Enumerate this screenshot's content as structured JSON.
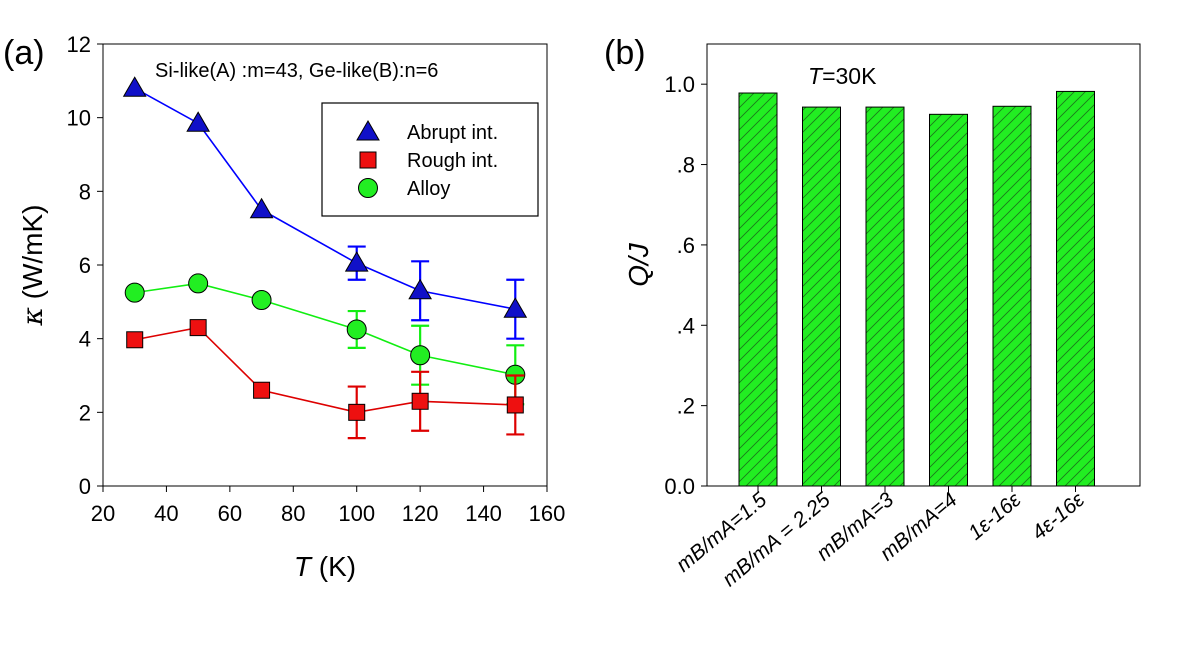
{
  "chart_data": [
    {
      "panel": "(a)",
      "type": "line",
      "annotation": "Si-like(A) :m=43, Ge-like(B):n=6",
      "xlabel": {
        "italic": "T",
        "rest": " (K)"
      },
      "ylabel": {
        "symbol": "κ",
        "rest": " (W/mK)"
      },
      "xlim": [
        20,
        160
      ],
      "ylim": [
        0,
        12
      ],
      "xticks": [
        20,
        40,
        60,
        80,
        100,
        120,
        140,
        160
      ],
      "yticks": [
        0,
        2,
        4,
        6,
        8,
        10,
        12
      ],
      "legend_position": "top-right",
      "series": [
        {
          "name": "Abrupt int.",
          "marker": "triangle",
          "color": "#0000ff",
          "markerColor": "#1010c8",
          "x": [
            30,
            50,
            70,
            100,
            120,
            150
          ],
          "y": [
            10.8,
            9.85,
            7.5,
            6.05,
            5.3,
            4.8
          ],
          "err": [
            null,
            null,
            null,
            0.45,
            0.8,
            0.8
          ]
        },
        {
          "name": "Rough int.",
          "marker": "square",
          "color": "#dd0000",
          "markerColor": "#ee1010",
          "x": [
            30,
            50,
            70,
            100,
            120,
            150
          ],
          "y": [
            3.97,
            4.3,
            2.6,
            2.0,
            2.3,
            2.2
          ],
          "err": [
            null,
            null,
            null,
            0.7,
            0.8,
            0.8
          ]
        },
        {
          "name": "Alloy",
          "marker": "circle",
          "color": "#11ee11",
          "markerColor": "#22ee22",
          "x": [
            30,
            50,
            70,
            100,
            120,
            150
          ],
          "y": [
            5.25,
            5.5,
            5.05,
            4.25,
            3.55,
            3.02
          ],
          "err": [
            null,
            null,
            null,
            0.5,
            0.8,
            0.8
          ]
        }
      ]
    },
    {
      "panel": "(b)",
      "type": "bar",
      "annotation": {
        "italic": "T",
        "rest": "=30K"
      },
      "ylabel": "Q/J",
      "ylim": [
        0.0,
        1.1
      ],
      "yticks": [
        0.0,
        0.2,
        0.4,
        0.6,
        0.8,
        1.0
      ],
      "ytick_labels": [
        "0.0",
        ".2",
        ".4",
        ".6",
        ".8",
        "1.0"
      ],
      "bar_color": "#22ee22",
      "hatch": "diagonal",
      "categories": [
        "mB/mA=1.5",
        "mB/mA = 2.25",
        "mB/mA=3",
        "mB/mA=4",
        "1ε-16ε",
        "4ε-16ε"
      ],
      "values": [
        0.978,
        0.943,
        0.943,
        0.925,
        0.945,
        0.982
      ]
    }
  ]
}
